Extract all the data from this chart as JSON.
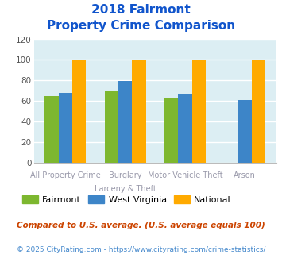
{
  "title_line1": "2018 Fairmont",
  "title_line2": "Property Crime Comparison",
  "category_labels_line1": [
    "All Property Crime",
    "Burglary",
    "Motor Vehicle Theft",
    "Arson"
  ],
  "category_labels_line2": [
    "",
    "Larceny & Theft",
    "",
    ""
  ],
  "fairmont_values": [
    65,
    70,
    63,
    0
  ],
  "wv_values": [
    68,
    79,
    66,
    61
  ],
  "national_values": [
    100,
    100,
    100,
    100
  ],
  "fairmont_color": "#7db72f",
  "wv_color": "#3d85c8",
  "national_color": "#ffaa00",
  "bg_color": "#dceef3",
  "ylim": [
    0,
    120
  ],
  "yticks": [
    0,
    20,
    40,
    60,
    80,
    100,
    120
  ],
  "grid_color": "#ffffff",
  "title_color": "#1155cc",
  "xlabel_color": "#9999aa",
  "legend_labels": [
    "Fairmont",
    "West Virginia",
    "National"
  ],
  "footnote1": "Compared to U.S. average. (U.S. average equals 100)",
  "footnote2": "© 2025 CityRating.com - https://www.cityrating.com/crime-statistics/",
  "footnote1_color": "#cc4400",
  "footnote2_color": "#4488cc"
}
